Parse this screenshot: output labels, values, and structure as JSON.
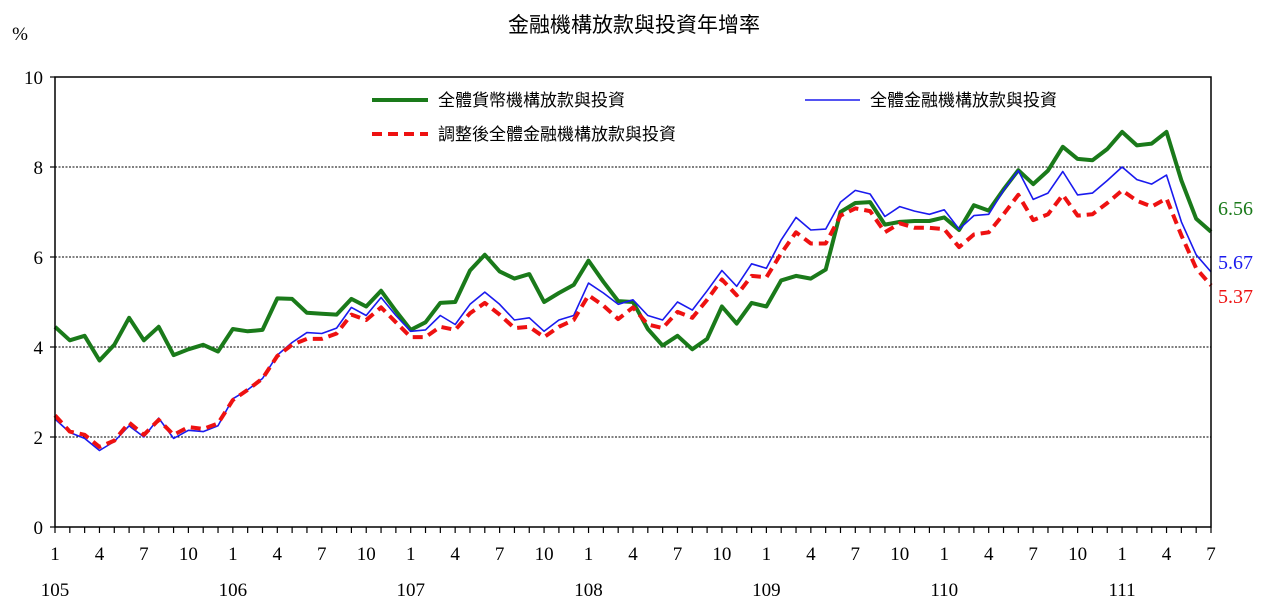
{
  "chart_data": {
    "type": "line",
    "title": "金融機構放款與投資年增率",
    "ylabel": "%",
    "ylim": [
      0,
      10
    ],
    "yticks": [
      "0",
      "2",
      "4",
      "6",
      "8",
      "10"
    ],
    "grid_y": true,
    "xtick_months": [
      "1",
      "4",
      "7",
      "10",
      "1",
      "4",
      "7",
      "10",
      "1",
      "4",
      "7",
      "10",
      "1",
      "4",
      "7",
      "10",
      "1",
      "4",
      "7",
      "10",
      "1",
      "4",
      "7",
      "10",
      "1",
      "4",
      "7"
    ],
    "xtick_years": [
      "105",
      "106",
      "107",
      "108",
      "109",
      "110",
      "111"
    ],
    "legend_position": "top",
    "series": [
      {
        "name": "全體貨幣機構放款與投資",
        "color": "#1a7a1a",
        "style": "solid-thick",
        "end_label": "6.56",
        "values": [
          4.45,
          4.15,
          4.25,
          3.7,
          4.05,
          4.65,
          4.15,
          4.45,
          3.82,
          3.95,
          4.05,
          3.9,
          4.4,
          4.35,
          4.38,
          5.08,
          5.07,
          4.76,
          4.74,
          4.72,
          5.07,
          4.9,
          5.25,
          4.8,
          4.38,
          4.55,
          4.98,
          5.0,
          5.7,
          6.05,
          5.68,
          5.52,
          5.62,
          5.0,
          5.2,
          5.38,
          5.92,
          5.45,
          5.02,
          5.0,
          4.4,
          4.03,
          4.25,
          3.95,
          4.18,
          4.9,
          4.52,
          4.98,
          4.9,
          5.48,
          5.58,
          5.52,
          5.72,
          7.0,
          7.2,
          7.22,
          6.72,
          6.78,
          6.8,
          6.8,
          6.88,
          6.6,
          7.15,
          7.03,
          7.5,
          7.93,
          7.62,
          7.92,
          8.45,
          8.18,
          8.15,
          8.4,
          8.78,
          8.48,
          8.52,
          8.78,
          7.7,
          6.85,
          6.56
        ]
      },
      {
        "name": "全體金融機構放款與投資",
        "color": "#1a1aee",
        "style": "solid-thin",
        "end_label": "5.67",
        "values": [
          2.4,
          2.1,
          1.97,
          1.7,
          1.9,
          2.25,
          2.0,
          2.42,
          1.97,
          2.15,
          2.12,
          2.25,
          2.85,
          3.05,
          3.3,
          3.82,
          4.1,
          4.32,
          4.3,
          4.42,
          4.88,
          4.7,
          5.1,
          4.7,
          4.35,
          4.38,
          4.7,
          4.5,
          4.95,
          5.22,
          4.95,
          4.6,
          4.65,
          4.35,
          4.6,
          4.7,
          5.42,
          5.2,
          4.95,
          5.05,
          4.7,
          4.6,
          5.0,
          4.82,
          5.25,
          5.7,
          5.35,
          5.85,
          5.75,
          6.38,
          6.88,
          6.6,
          6.62,
          7.22,
          7.48,
          7.4,
          6.9,
          7.12,
          7.02,
          6.95,
          7.05,
          6.62,
          6.92,
          6.95,
          7.48,
          7.92,
          7.28,
          7.42,
          7.9,
          7.38,
          7.42,
          7.7,
          8.0,
          7.72,
          7.62,
          7.82,
          6.78,
          6.05,
          5.67
        ]
      },
      {
        "name": "調整後全體金融機構放款與投資",
        "color": "#ee1111",
        "style": "dashed-thick",
        "end_label": "5.37",
        "values": [
          2.48,
          2.12,
          2.05,
          1.78,
          1.92,
          2.32,
          2.05,
          2.38,
          2.05,
          2.22,
          2.18,
          2.3,
          2.82,
          3.05,
          3.3,
          3.8,
          4.05,
          4.18,
          4.18,
          4.3,
          4.72,
          4.6,
          4.88,
          4.55,
          4.22,
          4.22,
          4.45,
          4.38,
          4.75,
          4.98,
          4.72,
          4.42,
          4.45,
          4.22,
          4.45,
          4.6,
          5.15,
          4.92,
          4.62,
          4.88,
          4.5,
          4.42,
          4.78,
          4.65,
          5.05,
          5.5,
          5.15,
          5.58,
          5.55,
          6.08,
          6.55,
          6.3,
          6.3,
          6.92,
          7.08,
          7.02,
          6.55,
          6.75,
          6.65,
          6.65,
          6.62,
          6.22,
          6.5,
          6.55,
          6.95,
          7.38,
          6.82,
          6.95,
          7.38,
          6.92,
          6.95,
          7.2,
          7.48,
          7.25,
          7.12,
          7.3,
          6.48,
          5.75,
          5.37
        ]
      }
    ]
  }
}
